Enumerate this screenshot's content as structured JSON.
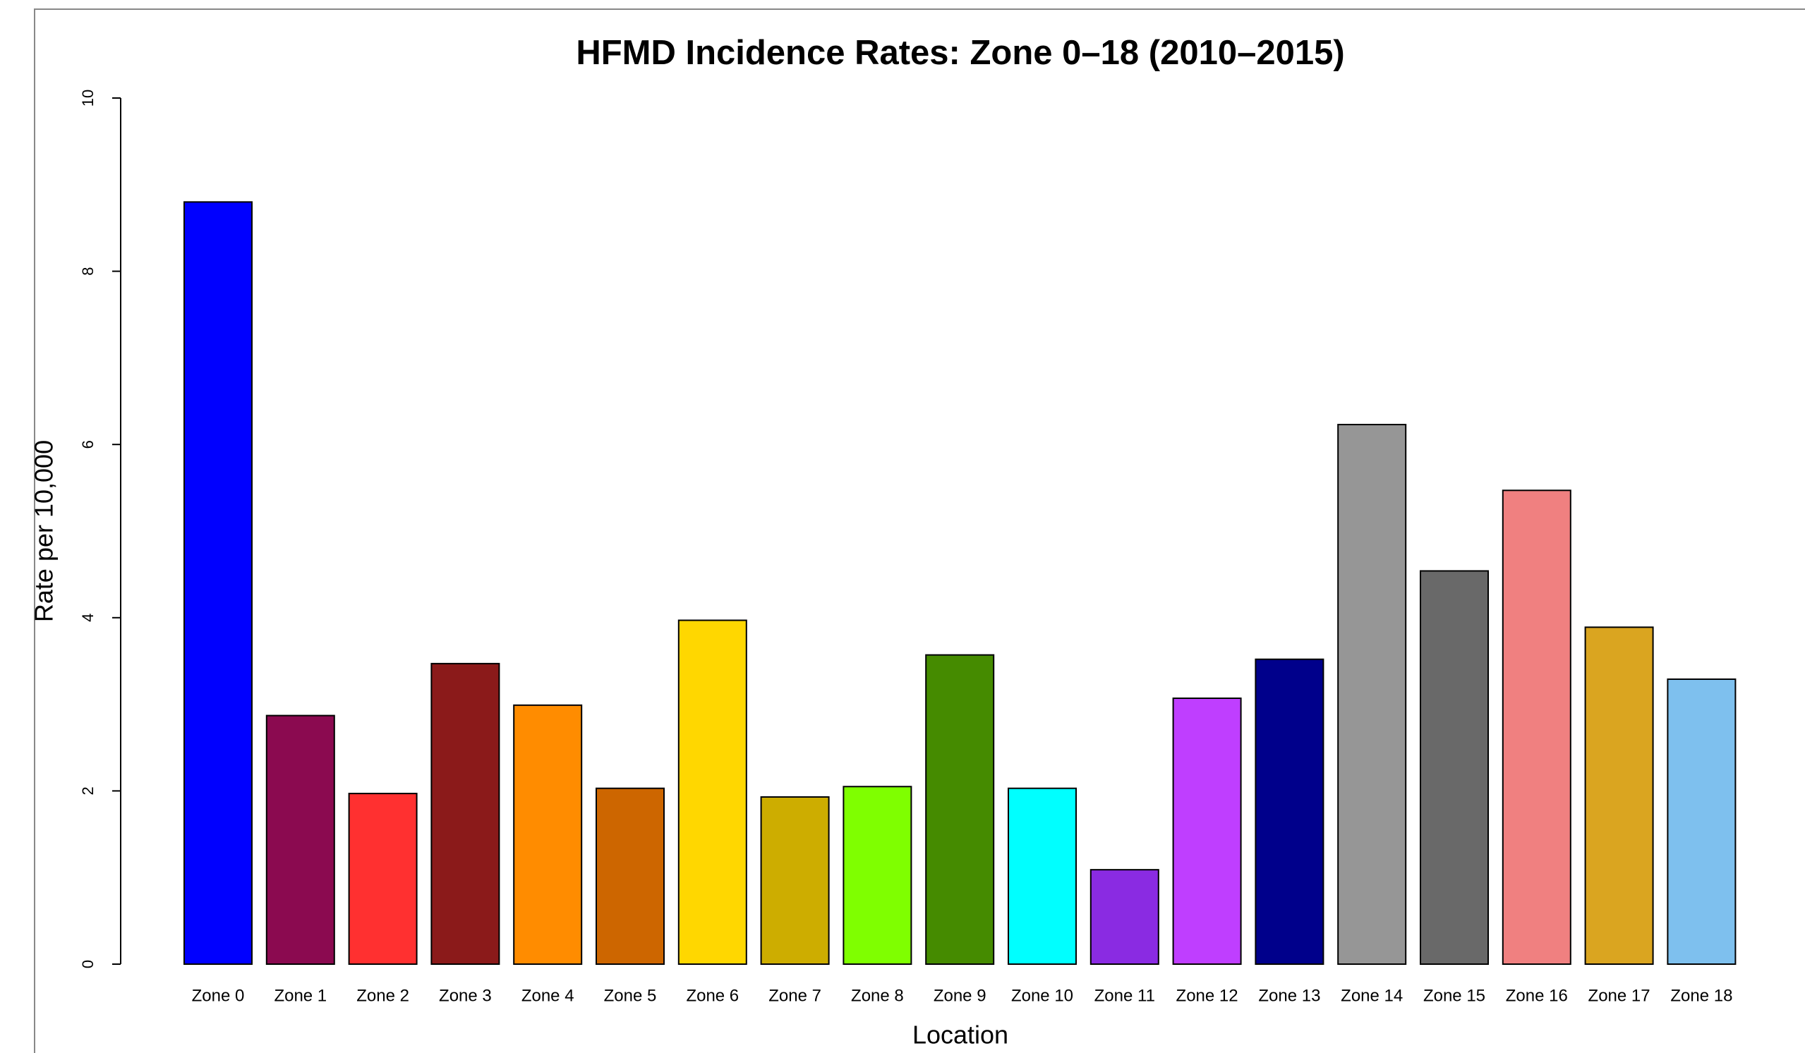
{
  "chart_data": {
    "type": "bar",
    "title": "HFMD Incidence Rates: Zone 0–18 (2010–2015)",
    "x_label": "Location",
    "y_label": "Rate per 10,000",
    "categories": [
      "Zone 0",
      "Zone 1",
      "Zone 2",
      "Zone 3",
      "Zone 4",
      "Zone 5",
      "Zone 6",
      "Zone 7",
      "Zone 8",
      "Zone 9",
      "Zone 10",
      "Zone 11",
      "Zone 12",
      "Zone 13",
      "Zone 14",
      "Zone 15",
      "Zone 16",
      "Zone 17",
      "Zone 18"
    ],
    "values": [
      8.8,
      2.87,
      1.97,
      3.47,
      2.99,
      2.03,
      3.97,
      1.93,
      2.05,
      3.57,
      2.03,
      1.09,
      3.07,
      3.52,
      6.23,
      4.54,
      5.47,
      3.89,
      3.29
    ],
    "colors": [
      "#0000FF",
      "#8B0A50",
      "#FF3030",
      "#8B1A1A",
      "#FF8C00",
      "#CD6600",
      "#FFD700",
      "#CDAD00",
      "#7FFF00",
      "#458B00",
      "#00FFFF",
      "#8A2BE2",
      "#BF3EFF",
      "#00008B",
      "#969696",
      "#696969",
      "#F08080",
      "#DAA520",
      "#7EC0EE"
    ],
    "ylim": [
      0,
      10
    ],
    "yticks": [
      0,
      2,
      4,
      6,
      8,
      10
    ]
  }
}
